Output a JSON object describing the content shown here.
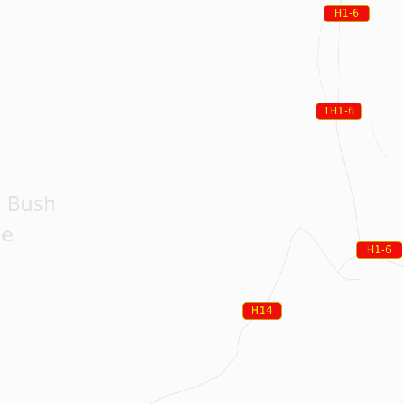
{
  "map": {
    "background": "#fbfbfb",
    "place_label": {
      "line1": "s Bush",
      "line2": "ge"
    },
    "route_shields": [
      {
        "label": "H1-6"
      },
      {
        "label": "TH1-6"
      },
      {
        "label": "H1-6"
      },
      {
        "label": "H14"
      }
    ],
    "colors": {
      "shield_fill": "#f20d0d",
      "shield_text": "#f5f500",
      "road": "#e6e6e6",
      "place_label": "#e2e2e2"
    }
  }
}
